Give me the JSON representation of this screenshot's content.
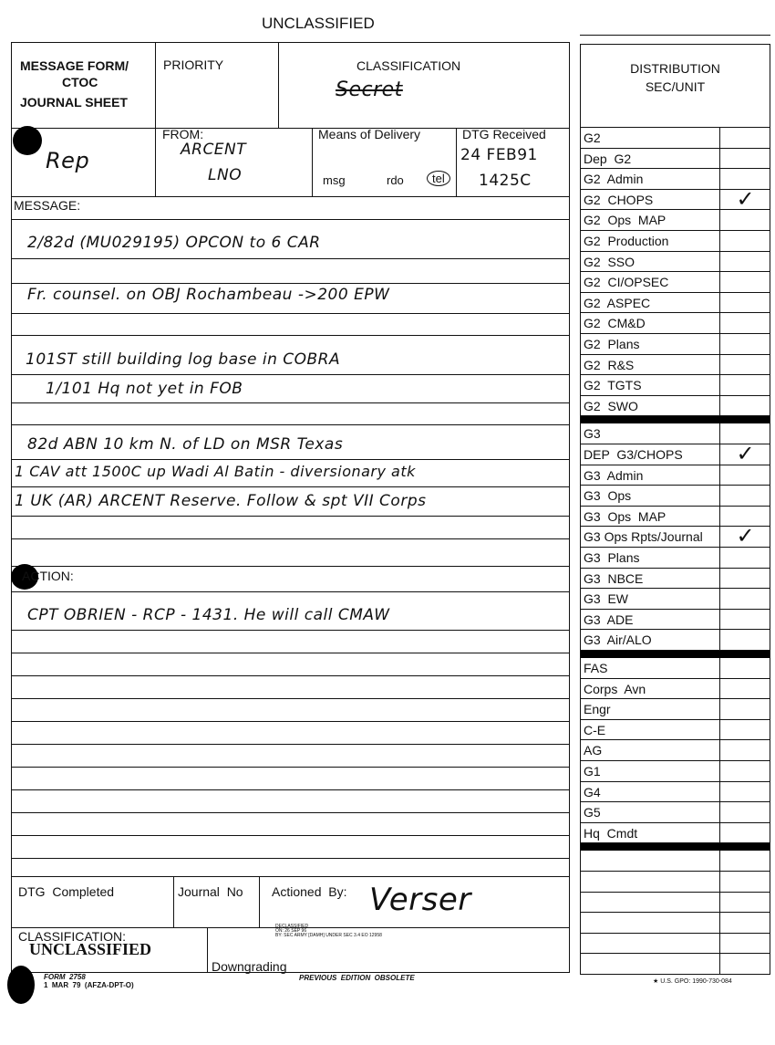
{
  "top_marking": "UNCLASSIFIED",
  "form": {
    "title_lines": [
      "MESSAGE FORM/",
      "CTOC",
      "JOURNAL SHEET"
    ],
    "priority_label": "PRIORITY",
    "classification_label": "CLASSIFICATION",
    "classification_value": "Secret",
    "to_value": "Rep",
    "from_label": "FROM:",
    "from_value": [
      "ARCENT",
      "LNO"
    ],
    "means_label": "Means of Delivery",
    "means_options": [
      "msg",
      "rdo",
      "tel"
    ],
    "means_selected": "tel",
    "dtg_received_label": "DTG Received",
    "dtg_received_value": [
      "24 FEB91",
      "1425C"
    ],
    "message_label": "MESSAGE:",
    "message_lines": [
      "2/82d (MU029195) OPCON to 6 CAR",
      "Fr. counsel. on OBJ Rochambeau ->200 EPW",
      "101ST still building log base in COBRA",
      "1/101 Hq not yet in FOB",
      "82d ABN 10 km N. of LD on MSR Texas",
      "1 CAV att 1500C up Wadi Al Batin - diversionary atk",
      "1 UK (AR) ARCENT Reserve. Follow & spt VII Corps"
    ],
    "action_label": "ACTION:",
    "action_lines": [
      "CPT OBRIEN - RCP - 1431. He will call CMAW"
    ],
    "dtg_completed_label": "DTG  Completed",
    "journal_no_label": "Journal  No",
    "actioned_by_label": "Actioned  By:",
    "actioned_by_value": "Verser",
    "classification_footer_label": "CLASSIFICATION:",
    "classification_footer_value": "UNCLASSIFIED",
    "declass_stamp": [
      "DECLASSIFIED",
      "ON: 26 SEP 96",
      "BY: SEC ARMY [DAMH] UNDER SEC 3.4 EO 12958"
    ],
    "downgrading_label": "Downgrading",
    "form_number": "FORM  2758",
    "form_date": "1  MAR  79  (AFZA-DPT-O)",
    "edition_note": "PREVIOUS  EDITION  OBSOLETE",
    "gpo_note": "★ U.S. GPO: 1990-730-084"
  },
  "distribution": {
    "title": "DISTRIBUTION",
    "subtitle": "SEC/UNIT",
    "groups": [
      [
        {
          "label": "G2",
          "checked": false
        },
        {
          "label": "Dep  G2",
          "checked": false
        },
        {
          "label": "G2  Admin",
          "checked": false
        },
        {
          "label": "G2  CHOPS",
          "checked": true
        },
        {
          "label": "G2  Ops  MAP",
          "checked": false
        },
        {
          "label": "G2  Production",
          "checked": false
        },
        {
          "label": "G2  SSO",
          "checked": false
        },
        {
          "label": "G2  CI/OPSEC",
          "checked": false
        },
        {
          "label": "G2  ASPEC",
          "checked": false
        },
        {
          "label": "G2  CM&D",
          "checked": false
        },
        {
          "label": "G2  Plans",
          "checked": false
        },
        {
          "label": "G2  R&S",
          "checked": false
        },
        {
          "label": "G2  TGTS",
          "checked": false
        },
        {
          "label": "G2  SWO",
          "checked": false
        }
      ],
      [
        {
          "label": "G3",
          "checked": false
        },
        {
          "label": "DEP  G3/CHOPS",
          "checked": true
        },
        {
          "label": "G3  Admin",
          "checked": false
        },
        {
          "label": "G3  Ops",
          "checked": false
        },
        {
          "label": "G3  Ops  MAP",
          "checked": false
        },
        {
          "label": "G3 Ops Rpts/Journal",
          "checked": true
        },
        {
          "label": "G3  Plans",
          "checked": false
        },
        {
          "label": "G3  NBCE",
          "checked": false
        },
        {
          "label": "G3  EW",
          "checked": false
        },
        {
          "label": "G3  ADE",
          "checked": false
        },
        {
          "label": "G3  Air/ALO",
          "checked": false
        }
      ],
      [
        {
          "label": "FAS",
          "checked": false
        },
        {
          "label": "Corps  Avn",
          "checked": false
        },
        {
          "label": "Engr",
          "checked": false
        },
        {
          "label": "C-E",
          "checked": false
        },
        {
          "label": "AG",
          "checked": false
        },
        {
          "label": "G1",
          "checked": false
        },
        {
          "label": "G4",
          "checked": false
        },
        {
          "label": "G5",
          "checked": false
        },
        {
          "label": "Hq  Cmdt",
          "checked": false
        }
      ],
      [
        {
          "label": "",
          "checked": false
        },
        {
          "label": "",
          "checked": false
        },
        {
          "label": "",
          "checked": false
        },
        {
          "label": "",
          "checked": false
        },
        {
          "label": "",
          "checked": false
        },
        {
          "label": "",
          "checked": false
        }
      ]
    ],
    "check_mark": "✓"
  }
}
